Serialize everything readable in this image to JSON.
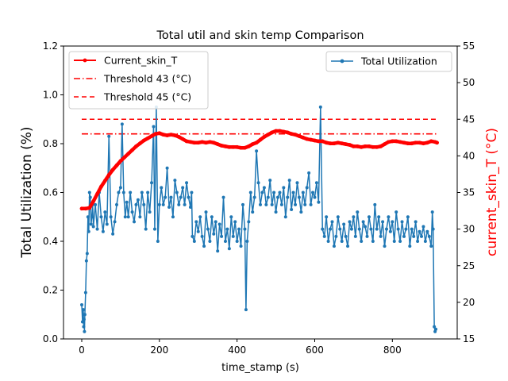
{
  "chart_data": {
    "type": "line",
    "title": "Total util and skin temp Comparison",
    "xlabel": "time_stamp (s)",
    "ylabel_left": "Total Utilization (%)",
    "ylabel_right": "current_skin_T (°C)",
    "xlim": [
      -47,
      967
    ],
    "ylim_left": [
      0.0,
      1.2
    ],
    "ylim_right": [
      15,
      55
    ],
    "x_ticks": [
      0,
      200,
      400,
      600,
      800
    ],
    "y_left_ticks": [
      0.0,
      0.2,
      0.4,
      0.6,
      0.8,
      1.0,
      1.2
    ],
    "y_right_ticks": [
      15,
      20,
      25,
      30,
      35,
      40,
      45,
      50,
      55
    ],
    "colors": {
      "utilization": "#1f77b4",
      "skin": "#ff0000",
      "thresholds": "#ff0000",
      "right_axis_label": "#ff0000"
    },
    "legend_left": {
      "placement": "upper-left",
      "entries": [
        "Current_skin_T",
        "Threshold 43 (°C)",
        "Threshold 45 (°C)"
      ]
    },
    "legend_right": {
      "placement": "upper-right",
      "entries": [
        "Total Utilization"
      ]
    },
    "series": [
      {
        "name": "Total Utilization",
        "axis": "left",
        "style": "line-with-dots",
        "points": [
          [
            0,
            0.14
          ],
          [
            2,
            0.07
          ],
          [
            4,
            0.12
          ],
          [
            5,
            0.05
          ],
          [
            6,
            0.08
          ],
          [
            7,
            0.03
          ],
          [
            8,
            0.1
          ],
          [
            10,
            0.19
          ],
          [
            12,
            0.32
          ],
          [
            14,
            0.35
          ],
          [
            16,
            0.5
          ],
          [
            18,
            0.44
          ],
          [
            20,
            0.6
          ],
          [
            22,
            0.58
          ],
          [
            24,
            0.47
          ],
          [
            26,
            0.5
          ],
          [
            28,
            0.55
          ],
          [
            30,
            0.46
          ],
          [
            35,
            0.55
          ],
          [
            40,
            0.45
          ],
          [
            45,
            0.6
          ],
          [
            50,
            0.5
          ],
          [
            55,
            0.44
          ],
          [
            60,
            0.52
          ],
          [
            65,
            0.47
          ],
          [
            70,
            0.83
          ],
          [
            75,
            0.5
          ],
          [
            80,
            0.43
          ],
          [
            85,
            0.48
          ],
          [
            90,
            0.55
          ],
          [
            95,
            0.6
          ],
          [
            100,
            0.62
          ],
          [
            104,
            0.88
          ],
          [
            108,
            0.6
          ],
          [
            112,
            0.5
          ],
          [
            116,
            0.56
          ],
          [
            120,
            0.5
          ],
          [
            125,
            0.6
          ],
          [
            130,
            0.52
          ],
          [
            135,
            0.48
          ],
          [
            140,
            0.55
          ],
          [
            145,
            0.57
          ],
          [
            150,
            0.5
          ],
          [
            155,
            0.6
          ],
          [
            160,
            0.55
          ],
          [
            165,
            0.45
          ],
          [
            170,
            0.6
          ],
          [
            175,
            0.52
          ],
          [
            180,
            0.64
          ],
          [
            185,
            0.87
          ],
          [
            188,
            0.45
          ],
          [
            192,
            0.95
          ],
          [
            196,
            0.4
          ],
          [
            200,
            0.55
          ],
          [
            205,
            0.62
          ],
          [
            210,
            0.55
          ],
          [
            215,
            0.58
          ],
          [
            220,
            0.7
          ],
          [
            225,
            0.54
          ],
          [
            230,
            0.58
          ],
          [
            235,
            0.5
          ],
          [
            240,
            0.65
          ],
          [
            245,
            0.6
          ],
          [
            250,
            0.55
          ],
          [
            255,
            0.58
          ],
          [
            260,
            0.62
          ],
          [
            265,
            0.55
          ],
          [
            270,
            0.64
          ],
          [
            275,
            0.58
          ],
          [
            280,
            0.54
          ],
          [
            283,
            0.6
          ],
          [
            285,
            0.42
          ],
          [
            290,
            0.4
          ],
          [
            295,
            0.48
          ],
          [
            300,
            0.44
          ],
          [
            305,
            0.5
          ],
          [
            310,
            0.42
          ],
          [
            315,
            0.38
          ],
          [
            320,
            0.52
          ],
          [
            325,
            0.45
          ],
          [
            330,
            0.4
          ],
          [
            335,
            0.5
          ],
          [
            340,
            0.43
          ],
          [
            345,
            0.48
          ],
          [
            350,
            0.36
          ],
          [
            355,
            0.47
          ],
          [
            360,
            0.42
          ],
          [
            365,
            0.58
          ],
          [
            370,
            0.4
          ],
          [
            375,
            0.45
          ],
          [
            380,
            0.37
          ],
          [
            385,
            0.5
          ],
          [
            390,
            0.42
          ],
          [
            395,
            0.48
          ],
          [
            400,
            0.4
          ],
          [
            405,
            0.45
          ],
          [
            410,
            0.38
          ],
          [
            415,
            0.55
          ],
          [
            420,
            0.45
          ],
          [
            423,
            0.12
          ],
          [
            426,
            0.4
          ],
          [
            430,
            0.48
          ],
          [
            435,
            0.6
          ],
          [
            440,
            0.52
          ],
          [
            445,
            0.58
          ],
          [
            450,
            0.77
          ],
          [
            455,
            0.64
          ],
          [
            460,
            0.55
          ],
          [
            465,
            0.6
          ],
          [
            470,
            0.62
          ],
          [
            475,
            0.55
          ],
          [
            480,
            0.58
          ],
          [
            485,
            0.65
          ],
          [
            490,
            0.55
          ],
          [
            495,
            0.6
          ],
          [
            500,
            0.52
          ],
          [
            505,
            0.58
          ],
          [
            510,
            0.6
          ],
          [
            515,
            0.55
          ],
          [
            520,
            0.62
          ],
          [
            525,
            0.5
          ],
          [
            530,
            0.58
          ],
          [
            535,
            0.65
          ],
          [
            540,
            0.53
          ],
          [
            545,
            0.6
          ],
          [
            550,
            0.55
          ],
          [
            555,
            0.64
          ],
          [
            560,
            0.58
          ],
          [
            565,
            0.52
          ],
          [
            570,
            0.6
          ],
          [
            575,
            0.55
          ],
          [
            580,
            0.62
          ],
          [
            585,
            0.68
          ],
          [
            590,
            0.55
          ],
          [
            595,
            0.6
          ],
          [
            600,
            0.58
          ],
          [
            605,
            0.64
          ],
          [
            610,
            0.56
          ],
          [
            615,
            0.95
          ],
          [
            620,
            0.45
          ],
          [
            625,
            0.42
          ],
          [
            630,
            0.5
          ],
          [
            635,
            0.4
          ],
          [
            640,
            0.45
          ],
          [
            645,
            0.48
          ],
          [
            650,
            0.38
          ],
          [
            655,
            0.42
          ],
          [
            660,
            0.5
          ],
          [
            665,
            0.45
          ],
          [
            670,
            0.4
          ],
          [
            675,
            0.47
          ],
          [
            680,
            0.42
          ],
          [
            685,
            0.38
          ],
          [
            690,
            0.48
          ],
          [
            695,
            0.45
          ],
          [
            700,
            0.5
          ],
          [
            705,
            0.42
          ],
          [
            710,
            0.52
          ],
          [
            715,
            0.45
          ],
          [
            720,
            0.4
          ],
          [
            725,
            0.48
          ],
          [
            730,
            0.46
          ],
          [
            735,
            0.42
          ],
          [
            740,
            0.5
          ],
          [
            745,
            0.45
          ],
          [
            750,
            0.4
          ],
          [
            755,
            0.55
          ],
          [
            760,
            0.45
          ],
          [
            765,
            0.5
          ],
          [
            770,
            0.42
          ],
          [
            775,
            0.48
          ],
          [
            780,
            0.38
          ],
          [
            785,
            0.45
          ],
          [
            790,
            0.5
          ],
          [
            795,
            0.44
          ],
          [
            800,
            0.48
          ],
          [
            805,
            0.4
          ],
          [
            810,
            0.52
          ],
          [
            815,
            0.45
          ],
          [
            820,
            0.4
          ],
          [
            825,
            0.48
          ],
          [
            830,
            0.42
          ],
          [
            835,
            0.45
          ],
          [
            840,
            0.5
          ],
          [
            845,
            0.38
          ],
          [
            850,
            0.45
          ],
          [
            855,
            0.42
          ],
          [
            860,
            0.48
          ],
          [
            865,
            0.4
          ],
          [
            870,
            0.44
          ],
          [
            875,
            0.42
          ],
          [
            880,
            0.46
          ],
          [
            885,
            0.4
          ],
          [
            890,
            0.44
          ],
          [
            895,
            0.42
          ],
          [
            900,
            0.38
          ],
          [
            903,
            0.52
          ],
          [
            905,
            0.45
          ],
          [
            908,
            0.05
          ],
          [
            910,
            0.03
          ],
          [
            912,
            0.04
          ]
        ]
      },
      {
        "name": "Current_skin_T",
        "axis": "right",
        "style": "thick-line-star-markers",
        "points": [
          [
            0,
            32.8
          ],
          [
            10,
            32.8
          ],
          [
            20,
            32.9
          ],
          [
            30,
            33.8
          ],
          [
            40,
            34.8
          ],
          [
            50,
            35.8
          ],
          [
            60,
            36.6
          ],
          [
            70,
            37.4
          ],
          [
            80,
            38.1
          ],
          [
            90,
            38.7
          ],
          [
            100,
            39.3
          ],
          [
            110,
            39.8
          ],
          [
            120,
            40.3
          ],
          [
            130,
            40.8
          ],
          [
            140,
            41.3
          ],
          [
            150,
            41.7
          ],
          [
            160,
            42.1
          ],
          [
            170,
            42.4
          ],
          [
            180,
            42.7
          ],
          [
            190,
            43.0
          ],
          [
            200,
            43.1
          ],
          [
            210,
            42.9
          ],
          [
            220,
            42.8
          ],
          [
            230,
            42.9
          ],
          [
            240,
            42.8
          ],
          [
            250,
            42.6
          ],
          [
            260,
            42.3
          ],
          [
            270,
            42.0
          ],
          [
            280,
            41.9
          ],
          [
            290,
            41.8
          ],
          [
            300,
            41.8
          ],
          [
            310,
            41.9
          ],
          [
            320,
            41.8
          ],
          [
            330,
            41.9
          ],
          [
            340,
            41.8
          ],
          [
            350,
            41.6
          ],
          [
            360,
            41.4
          ],
          [
            370,
            41.3
          ],
          [
            380,
            41.2
          ],
          [
            390,
            41.2
          ],
          [
            400,
            41.2
          ],
          [
            410,
            41.1
          ],
          [
            420,
            41.1
          ],
          [
            430,
            41.3
          ],
          [
            440,
            41.6
          ],
          [
            450,
            41.8
          ],
          [
            460,
            42.2
          ],
          [
            470,
            42.6
          ],
          [
            480,
            42.9
          ],
          [
            490,
            43.2
          ],
          [
            500,
            43.4
          ],
          [
            510,
            43.4
          ],
          [
            520,
            43.3
          ],
          [
            530,
            43.2
          ],
          [
            540,
            43.0
          ],
          [
            550,
            42.9
          ],
          [
            560,
            42.7
          ],
          [
            570,
            42.5
          ],
          [
            580,
            42.3
          ],
          [
            590,
            42.2
          ],
          [
            600,
            42.1
          ],
          [
            610,
            42.0
          ],
          [
            620,
            42.0
          ],
          [
            630,
            41.8
          ],
          [
            640,
            41.7
          ],
          [
            650,
            41.7
          ],
          [
            660,
            41.8
          ],
          [
            670,
            41.7
          ],
          [
            680,
            41.6
          ],
          [
            690,
            41.5
          ],
          [
            700,
            41.3
          ],
          [
            710,
            41.3
          ],
          [
            720,
            41.2
          ],
          [
            730,
            41.3
          ],
          [
            740,
            41.3
          ],
          [
            750,
            41.2
          ],
          [
            760,
            41.2
          ],
          [
            770,
            41.3
          ],
          [
            780,
            41.6
          ],
          [
            790,
            41.9
          ],
          [
            800,
            42.0
          ],
          [
            810,
            42.0
          ],
          [
            820,
            41.9
          ],
          [
            830,
            41.8
          ],
          [
            840,
            41.7
          ],
          [
            850,
            41.7
          ],
          [
            860,
            41.8
          ],
          [
            870,
            41.8
          ],
          [
            880,
            41.7
          ],
          [
            890,
            41.8
          ],
          [
            900,
            42.0
          ],
          [
            910,
            41.9
          ],
          [
            915,
            41.8
          ]
        ]
      },
      {
        "name": "Threshold 43 (°C)",
        "axis": "right",
        "style": "dash-dot",
        "points": [
          [
            0,
            43
          ],
          [
            915,
            43
          ]
        ]
      },
      {
        "name": "Threshold 45 (°C)",
        "axis": "right",
        "style": "dashed",
        "points": [
          [
            0,
            45
          ],
          [
            915,
            45
          ]
        ]
      }
    ]
  }
}
